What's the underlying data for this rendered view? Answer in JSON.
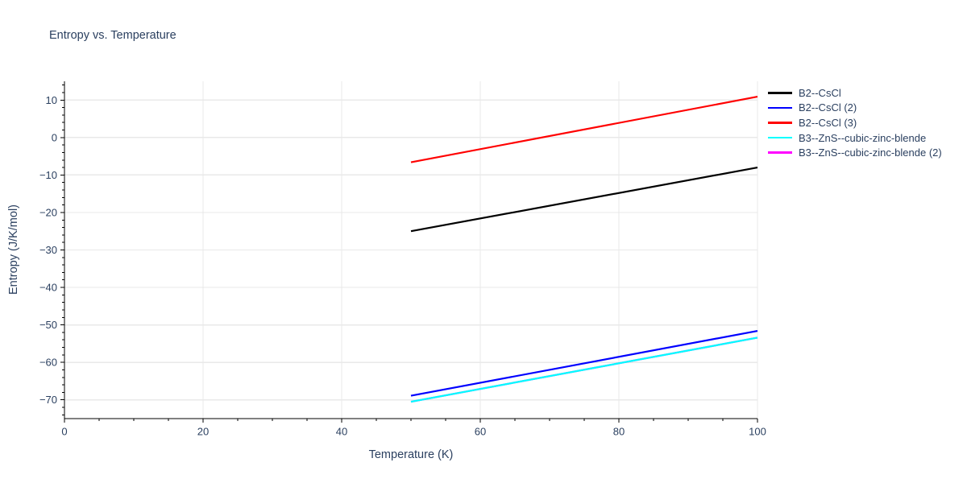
{
  "chart_data": {
    "type": "line",
    "title": "Entropy vs. Temperature",
    "xlabel": "Temperature (K)",
    "ylabel": "Entropy (J/K/mol)",
    "xlim": [
      0,
      100
    ],
    "ylim": [
      -75,
      15
    ],
    "x_ticks": [
      0,
      20,
      40,
      60,
      80,
      100
    ],
    "y_ticks": [
      10,
      0,
      -10,
      -20,
      -30,
      -40,
      -50,
      -60,
      -70
    ],
    "x_minor_step": 5,
    "y_minor_step": 2,
    "grid": true,
    "legend_position": "right-outside-top",
    "colors": {
      "text": "#2a3f5f",
      "grid": "#e9e9e9",
      "axis": "#000000",
      "background": "#ffffff"
    },
    "series": [
      {
        "name": "B2--CsCl",
        "color": "#000000",
        "x": [
          50,
          100
        ],
        "y": [
          -25.0,
          -8.0
        ]
      },
      {
        "name": "B2--CsCl (2)",
        "color": "#0000ff",
        "x": [
          50,
          100
        ],
        "y": [
          -68.9,
          -51.6
        ]
      },
      {
        "name": "B2--CsCl (3)",
        "color": "#ff0000",
        "x": [
          50,
          100
        ],
        "y": [
          -6.6,
          10.9
        ]
      },
      {
        "name": "B3--ZnS--cubic-zinc-blende",
        "color": "#00ffff",
        "x": [
          50,
          100
        ],
        "y": [
          -70.5,
          -53.4
        ]
      },
      {
        "name": "B3--ZnS--cubic-zinc-blende (2)",
        "color": "#ff00ff",
        "x": [
          50,
          100
        ],
        "y": [
          -70.5,
          -53.4
        ]
      }
    ],
    "draw_order": [
      0,
      1,
      2,
      4,
      3
    ]
  }
}
